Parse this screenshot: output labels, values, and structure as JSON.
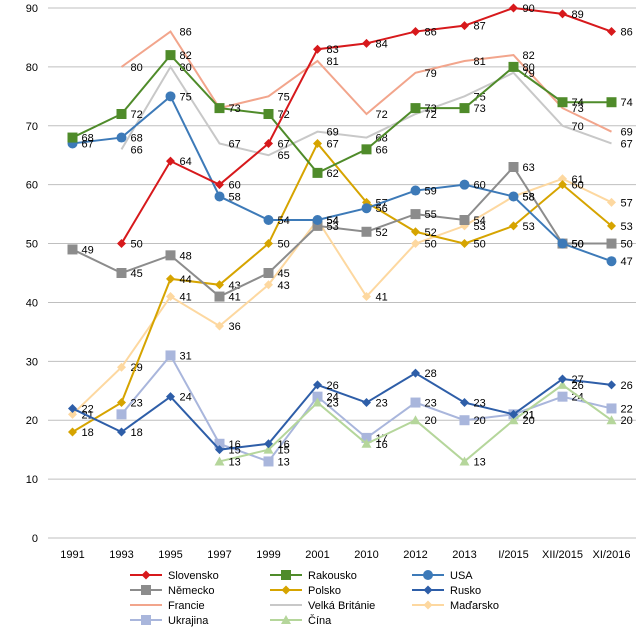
{
  "chart_data": {
    "type": "line",
    "categories": [
      "1991",
      "1993",
      "1995",
      "1997",
      "1999",
      "2001",
      "2010",
      "2012",
      "2013",
      "I/2015",
      "XII/2015",
      "XI/2016"
    ],
    "ylim": [
      0,
      90
    ],
    "yticks": [
      "0",
      "10",
      "20",
      "30",
      "40",
      "50",
      "60",
      "70",
      "80",
      "90"
    ],
    "grid": true,
    "legend_position": "bottom",
    "series": [
      {
        "name": "Slovensko",
        "color": "#d7191c",
        "marker": "diamond",
        "values": [
          null,
          50,
          64,
          60,
          67,
          83,
          84,
          86,
          87,
          90,
          89,
          86
        ],
        "labels": [
          "",
          "50",
          "64",
          "60",
          "67",
          "83",
          "84",
          "86",
          "87",
          "90",
          "89",
          "86"
        ]
      },
      {
        "name": "Rakousko",
        "color": "#4f8b2a",
        "marker": "square",
        "values": [
          68,
          72,
          82,
          73,
          72,
          62,
          66,
          73,
          73,
          80,
          74,
          74
        ],
        "labels": [
          "68",
          "72",
          "82",
          "73",
          "72",
          "62",
          "66",
          "73",
          "73",
          "80",
          "74",
          "74"
        ]
      },
      {
        "name": "USA",
        "color": "#3d7ab8",
        "marker": "circle",
        "values": [
          67,
          68,
          75,
          58,
          54,
          54,
          56,
          59,
          60,
          58,
          50,
          47
        ],
        "labels": [
          "67",
          "68",
          "75",
          "58",
          "54",
          "54",
          "56",
          "59",
          "60",
          "58",
          "50",
          "47"
        ]
      },
      {
        "name": "Německo",
        "color": "#8c8c8c",
        "marker": "square",
        "values": [
          49,
          45,
          48,
          41,
          45,
          53,
          52,
          55,
          54,
          63,
          50,
          50
        ],
        "labels": [
          "49",
          "45",
          "48",
          "41",
          "45",
          "53",
          "52",
          "55",
          "54",
          "63",
          "50",
          "50"
        ]
      },
      {
        "name": "Polsko",
        "color": "#d6a400",
        "marker": "diamond",
        "values": [
          18,
          23,
          44,
          43,
          50,
          67,
          57,
          52,
          50,
          53,
          60,
          53
        ],
        "labels": [
          "18",
          "23",
          "44",
          "43",
          "50",
          "67",
          "57",
          "52",
          "50",
          "53",
          "60",
          "53"
        ]
      },
      {
        "name": "Rusko",
        "color": "#2e5ea8",
        "marker": "diamond",
        "values": [
          22,
          18,
          24,
          15,
          16,
          26,
          23,
          28,
          23,
          21,
          27,
          26
        ],
        "labels": [
          "22",
          "18",
          "24",
          "15",
          "16",
          "26",
          "23",
          "28",
          "23",
          "21",
          "27",
          "26"
        ]
      },
      {
        "name": "Francie",
        "color": "#f2a58c",
        "marker": "none",
        "values": [
          null,
          80,
          86,
          73,
          75,
          81,
          72,
          79,
          81,
          82,
          73,
          69
        ],
        "labels": [
          "",
          "80",
          "86",
          "",
          "75",
          "81",
          "72",
          "79",
          "81",
          "82",
          "73",
          "69"
        ]
      },
      {
        "name": "Velká Británie",
        "color": "#c8c8c8",
        "marker": "none",
        "values": [
          null,
          66,
          80,
          67,
          65,
          69,
          68,
          72,
          75,
          79,
          70,
          67
        ],
        "labels": [
          "",
          "66",
          "80",
          "67",
          "65",
          "69",
          "68",
          "72",
          "75",
          "79",
          "70",
          "67"
        ]
      },
      {
        "name": "Maďarsko",
        "color": "#fdd8a0",
        "marker": "diamond",
        "values": [
          21,
          29,
          41,
          36,
          43,
          54,
          41,
          50,
          53,
          58,
          61,
          57
        ],
        "labels": [
          "21",
          "29",
          "41",
          "36",
          "43",
          "54",
          "41",
          "50",
          "53",
          "58",
          "61",
          "57"
        ]
      },
      {
        "name": "Ukrajina",
        "color": "#a9b6dc",
        "marker": "square",
        "values": [
          null,
          21,
          31,
          16,
          13,
          24,
          17,
          23,
          20,
          21,
          24,
          22
        ],
        "labels": [
          "",
          "",
          "31",
          "16",
          "13",
          "24",
          "17",
          "23",
          "20",
          "21",
          "24",
          "22"
        ]
      },
      {
        "name": "Čína",
        "color": "#b5d69b",
        "marker": "triangle",
        "values": [
          null,
          null,
          null,
          13,
          15,
          23,
          16,
          20,
          13,
          20,
          26,
          20
        ],
        "labels": [
          "",
          "",
          "",
          "13",
          "15",
          "23",
          "16",
          "20",
          "13",
          "20",
          "26",
          "20"
        ]
      }
    ]
  }
}
